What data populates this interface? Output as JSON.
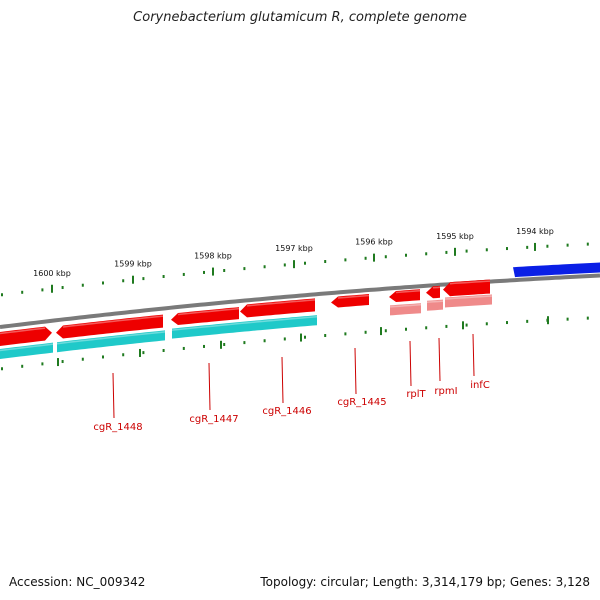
{
  "header": {
    "title": "Corynebacterium glutamicum R, complete genome"
  },
  "colors": {
    "backbone": "#7a7a7a",
    "tick": "#1f7a1f",
    "gene_forward": "#ee0000",
    "gene_reverse_light": "#ef8a8a",
    "cds_teal": "#1fc9c9",
    "feature_blue": "#0a1fe6",
    "label": "#cc0000"
  },
  "map": {
    "kbp_ticks": [
      {
        "kbp": 1600,
        "label": "1600 kbp"
      },
      {
        "kbp": 1599,
        "label": "1599 kbp"
      },
      {
        "kbp": 1598,
        "label": "1598 kbp"
      },
      {
        "kbp": 1597,
        "label": "1597 kbp"
      },
      {
        "kbp": 1596,
        "label": "1596 kbp"
      },
      {
        "kbp": 1595,
        "label": "1595 kbp"
      },
      {
        "kbp": 1594,
        "label": "1594 kbp"
      }
    ],
    "gene_labels": [
      {
        "name": "cgR_1448"
      },
      {
        "name": "cgR_1447"
      },
      {
        "name": "cgR_1446"
      },
      {
        "name": "cgR_1445"
      },
      {
        "name": "rplT"
      },
      {
        "name": "rpmI"
      },
      {
        "name": "infC"
      }
    ]
  },
  "footer": {
    "accession": "Accession: NC_009342",
    "summary": "Topology: circular; Length: 3,314,179 bp; Genes: 3,128"
  }
}
